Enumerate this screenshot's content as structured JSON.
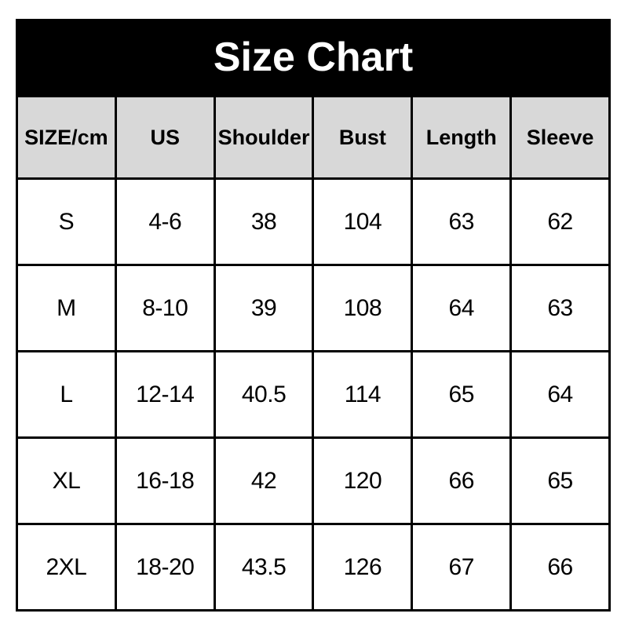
{
  "banner": {
    "title": "Size Chart",
    "background": "#000000",
    "text_color": "#ffffff"
  },
  "chart_data": {
    "type": "table",
    "title": "Size Chart",
    "columns": [
      "SIZE/cm",
      "US",
      "Shoulder",
      "Bust",
      "Length",
      "Sleeve"
    ],
    "rows": [
      [
        "S",
        "4-6",
        "38",
        "104",
        "63",
        "62"
      ],
      [
        "M",
        "8-10",
        "39",
        "108",
        "64",
        "63"
      ],
      [
        "L",
        "12-14",
        "40.5",
        "114",
        "65",
        "64"
      ],
      [
        "XL",
        "16-18",
        "42",
        "120",
        "66",
        "65"
      ],
      [
        "2XL",
        "18-20",
        "43.5",
        "126",
        "67",
        "66"
      ]
    ]
  },
  "colors": {
    "page_background": "#ffffff",
    "banner_background": "#000000",
    "header_cell_background": "#d8d8d8",
    "cell_background": "#ffffff",
    "border": "#000000",
    "text": "#000000",
    "title_text": "#ffffff"
  }
}
